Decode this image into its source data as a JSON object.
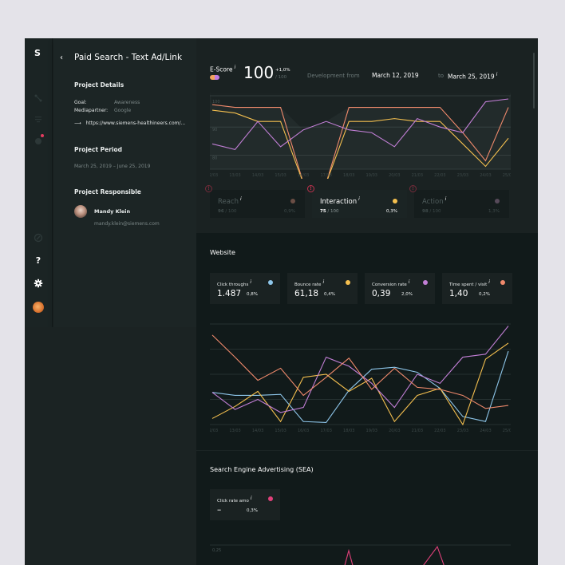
{
  "sidebar": {
    "logo": "S",
    "icons": [
      "route-icon",
      "list-icon",
      "notification-icon",
      "compass-icon",
      "help-icon",
      "settings-icon",
      "user-avatar"
    ],
    "help_label": "?"
  },
  "panel": {
    "back_label": "‹",
    "title": "Paid Search - Text Ad/Link",
    "project_details": {
      "heading": "Project Details",
      "goal_label": "Goal:",
      "goal_value": "Awareness",
      "mediapartner_label": "Mediapartner:",
      "mediapartner_value": "Google",
      "link_arrow": "⟶",
      "link": "https://www.siemens-healthineers.com/..."
    },
    "project_period": {
      "heading": "Project Period",
      "value": "March 25, 2019 – June 25, 2019"
    },
    "project_responsible": {
      "heading": "Project Responsible",
      "name": "Mandy Klein",
      "email": "mandy.klein@siemens.com"
    }
  },
  "escore": {
    "label": "E-Score",
    "info": "i",
    "value": "100",
    "delta": "+1,0%",
    "max": "/ 100",
    "development_label": "Development from",
    "from_date": "March 12, 2019",
    "to_label": "to",
    "to_date": "March 25, 2019"
  },
  "tabs": [
    {
      "name": "Reach",
      "score": "96",
      "max": "/ 100",
      "pct": "0,9%",
      "color": "#6b4e45",
      "active": false
    },
    {
      "name": "Interaction",
      "score": "75",
      "max": "/ 100",
      "pct": "0,3%",
      "color": "#f5c04f",
      "active": true
    },
    {
      "name": "Action",
      "score": "98",
      "max": "/ 100",
      "pct": "1,3%",
      "color": "#574a5a",
      "active": false
    }
  ],
  "website": {
    "title": "Website",
    "kpis": [
      {
        "name": "Click throughs",
        "value": "1.487",
        "pct": "0,8%",
        "color": "#8ec6ea"
      },
      {
        "name": "Bounce rate",
        "value": "61,18",
        "pct": "0,4%",
        "color": "#f5c04f"
      },
      {
        "name": "Conversion rate",
        "value": "0,39",
        "pct": "2,0%",
        "color": "#c27fd6"
      },
      {
        "name": "Time spent / visit",
        "value": "1,40",
        "pct": "0,2%",
        "color": "#f08a6c"
      }
    ]
  },
  "sea": {
    "title": "Search Engine Advertising (SEA)",
    "kpi": {
      "name": "Click rate amo",
      "value": "–",
      "pct": "0,3%",
      "color": "#e0407a"
    }
  },
  "chart_data": [
    {
      "type": "line",
      "title": "E-Score development",
      "x": [
        "12/03",
        "13/03",
        "14/03",
        "15/03",
        "16/03",
        "17/03",
        "18/03",
        "19/03",
        "20/03",
        "21/03",
        "22/03",
        "23/03",
        "24/03",
        "25/03"
      ],
      "ylim": [
        75,
        100
      ],
      "yticks": [
        100,
        90,
        80
      ],
      "grid": true,
      "series": [
        {
          "name": "Reach",
          "color": "#f08a6c",
          "values": [
            98,
            97,
            97,
            97,
            70,
            70,
            97,
            97,
            97,
            97,
            97,
            88,
            78,
            97
          ]
        },
        {
          "name": "Interaction",
          "color": "#f5c04f",
          "values": [
            96,
            95,
            92,
            92,
            70,
            70,
            92,
            92,
            93,
            92,
            92,
            84,
            76,
            86
          ]
        },
        {
          "name": "Action",
          "color": "#c27fd6",
          "values": [
            84,
            82,
            92,
            83,
            89,
            92,
            89,
            88,
            83,
            93,
            90,
            88,
            99,
            100
          ]
        }
      ]
    },
    {
      "type": "line",
      "title": "Website",
      "x": [
        "12/03",
        "13/03",
        "14/03",
        "15/03",
        "16/03",
        "17/03",
        "18/03",
        "19/03",
        "20/03",
        "21/03",
        "22/03",
        "23/03",
        "24/03",
        "25/03"
      ],
      "grid": true,
      "series": [
        {
          "name": "Click throughs",
          "color": "#8ec6ea",
          "values": [
            32,
            29,
            29,
            30,
            3,
            2,
            34,
            55,
            57,
            52,
            36,
            8,
            3,
            73
          ]
        },
        {
          "name": "Bounce rate",
          "color": "#f5c04f",
          "values": [
            6,
            18,
            33,
            3,
            47,
            50,
            33,
            46,
            3,
            29,
            36,
            0,
            65,
            81
          ]
        },
        {
          "name": "Conversion rate",
          "color": "#c27fd6",
          "values": [
            32,
            15,
            25,
            12,
            17,
            67,
            58,
            41,
            17,
            50,
            41,
            67,
            70,
            98
          ]
        },
        {
          "name": "Time spent / visit",
          "color": "#f08a6c",
          "values": [
            89,
            67,
            44,
            56,
            29,
            47,
            66,
            35,
            56,
            37,
            35,
            29,
            16,
            19
          ]
        }
      ]
    },
    {
      "type": "line",
      "title": "Search Engine Advertising (SEA)",
      "yticks": [
        "0,25"
      ],
      "series": [
        {
          "name": "Click rate amo",
          "color": "#e0407a",
          "values": []
        }
      ]
    }
  ]
}
